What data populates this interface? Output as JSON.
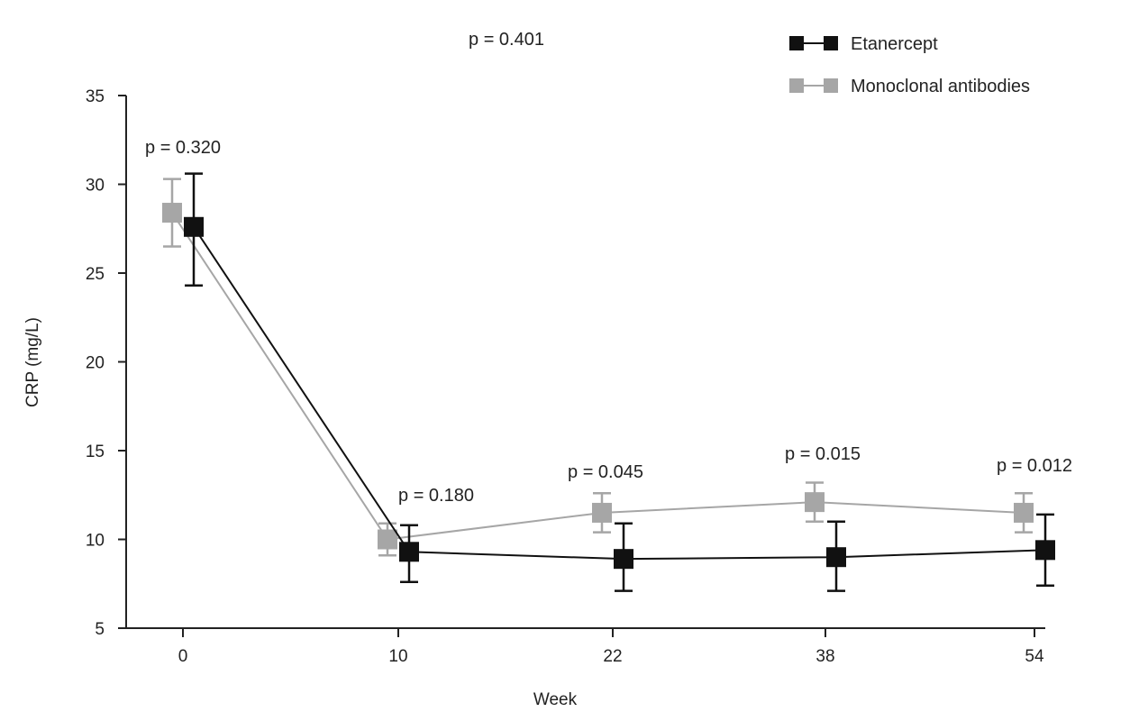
{
  "chart_data": {
    "type": "line",
    "title": "",
    "xlabel": "Week",
    "ylabel": "CRP (mg/L)",
    "ylim": [
      5,
      35
    ],
    "yticks": [
      5,
      10,
      15,
      20,
      25,
      30,
      35
    ],
    "categories": [
      "0",
      "10",
      "22",
      "38",
      "54"
    ],
    "grid": false,
    "legend_position": "top-right",
    "series": [
      {
        "name": "Etanercept",
        "color": "#111111",
        "values": [
          27.6,
          9.3,
          8.9,
          9.0,
          9.4
        ],
        "error_low": [
          24.3,
          7.6,
          7.1,
          7.1,
          7.4
        ],
        "error_high": [
          30.6,
          10.8,
          10.9,
          11.0,
          11.4
        ]
      },
      {
        "name": "Monoclonal antibodies",
        "color": "#a6a6a6",
        "values": [
          28.4,
          10.0,
          11.5,
          12.1,
          11.5
        ],
        "error_low": [
          26.5,
          9.1,
          10.4,
          11.0,
          10.4
        ],
        "error_high": [
          30.3,
          10.9,
          12.6,
          13.2,
          12.6
        ]
      }
    ],
    "annotations": {
      "overall": "p = 0.401",
      "per_week": [
        "p = 0.320",
        "p = 0.180",
        "p = 0.045",
        "p = 0.015",
        "p = 0.012"
      ]
    }
  }
}
